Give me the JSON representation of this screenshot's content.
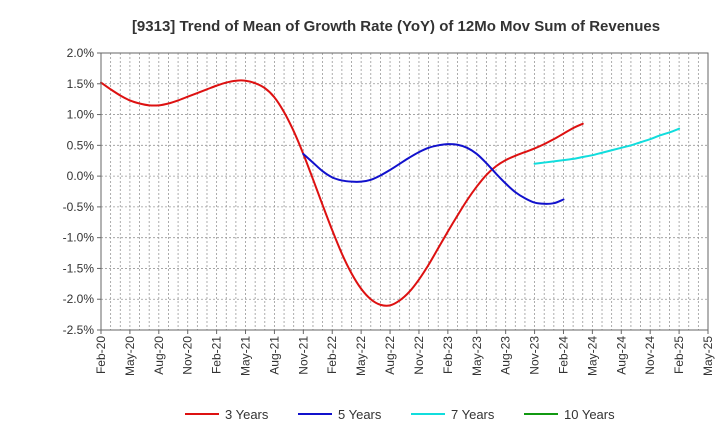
{
  "chart_data": {
    "type": "line",
    "title": "[9313]  Trend of Mean of Growth Rate (YoY) of 12Mo Mov Sum of Revenues",
    "xlabel": "",
    "ylabel": "",
    "ylim": [
      -0.025,
      0.02
    ],
    "yticks": [
      0.02,
      0.015,
      0.01,
      0.005,
      0.0,
      -0.005,
      -0.01,
      -0.015,
      -0.02,
      -0.025
    ],
    "ytick_labels": [
      "2.0%",
      "1.5%",
      "1.0%",
      "0.5%",
      "0.0%",
      "-0.5%",
      "-1.0%",
      "-1.5%",
      "-2.0%",
      "-2.5%"
    ],
    "x_start": "Feb-20",
    "x_months": 63,
    "xtick_labels": [
      "Feb-20",
      "May-20",
      "Aug-20",
      "Nov-20",
      "Feb-21",
      "May-21",
      "Aug-21",
      "Nov-21",
      "Feb-22",
      "May-22",
      "Aug-22",
      "Nov-22",
      "Feb-23",
      "May-23",
      "Aug-23",
      "Nov-23",
      "Feb-24",
      "May-24",
      "Aug-24",
      "Nov-24",
      "Feb-25",
      "May-25"
    ],
    "grid": true,
    "legend_position": "bottom",
    "series": [
      {
        "name": "3 Years",
        "color": "#dd1111",
        "start_index": 0,
        "values": [
          0.0152,
          0.0141,
          0.0131,
          0.0123,
          0.0118,
          0.0115,
          0.0115,
          0.0118,
          0.0123,
          0.0129,
          0.0135,
          0.0141,
          0.0147,
          0.0152,
          0.0155,
          0.0155,
          0.0151,
          0.0143,
          0.0128,
          0.0104,
          0.0073,
          0.0036,
          -0.0005,
          -0.0047,
          -0.0088,
          -0.0126,
          -0.0158,
          -0.0183,
          -0.02,
          -0.0209,
          -0.021,
          -0.0202,
          -0.0188,
          -0.0168,
          -0.0144,
          -0.0117,
          -0.009,
          -0.0064,
          -0.0039,
          -0.0017,
          0.0002,
          0.0016,
          0.0026,
          0.0033,
          0.0039,
          0.0045,
          0.0052,
          0.006,
          0.0069,
          0.0078,
          0.0085
        ]
      },
      {
        "name": "5 Years",
        "color": "#1111cc",
        "start_index": 21,
        "values": [
          0.0036,
          0.0022,
          0.0008,
          -0.0002,
          -0.0007,
          -0.0009,
          -0.0009,
          -0.0006,
          0.0001,
          0.001,
          0.002,
          0.003,
          0.0039,
          0.0046,
          0.005,
          0.0052,
          0.0051,
          0.0046,
          0.0036,
          0.0021,
          0.0004,
          -0.0012,
          -0.0026,
          -0.0036,
          -0.0043,
          -0.0045,
          -0.0044,
          -0.0038
        ]
      },
      {
        "name": "7 Years",
        "color": "#11dddd",
        "start_index": 45,
        "values": [
          0.002,
          0.0022,
          0.0024,
          0.0026,
          0.0028,
          0.0031,
          0.0034,
          0.0038,
          0.0042,
          0.0046,
          0.005,
          0.0055,
          0.006,
          0.0066,
          0.0071,
          0.0077
        ]
      },
      {
        "name": "10 Years",
        "color": "#119911",
        "start_index": 0,
        "values": []
      }
    ]
  }
}
